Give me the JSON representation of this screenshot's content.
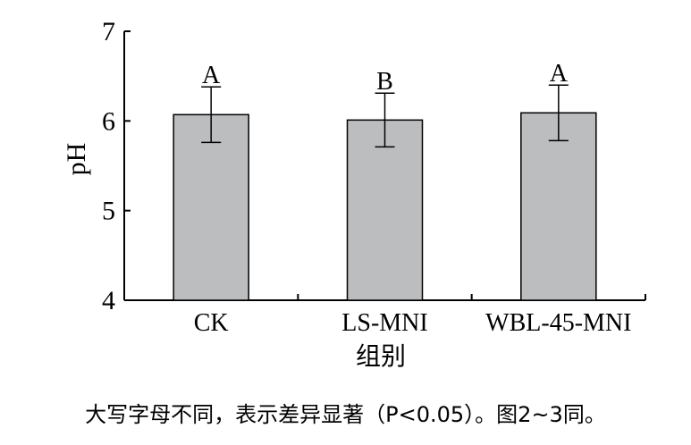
{
  "chart_data": {
    "type": "bar",
    "categories": [
      "CK",
      "LS-MNI",
      "WBL-45-MNI"
    ],
    "values": [
      6.07,
      6.01,
      6.09
    ],
    "error": [
      0.31,
      0.3,
      0.31
    ],
    "significance_letters": [
      "A",
      "B",
      "A"
    ],
    "xlabel": "组别",
    "ylabel": "pH",
    "ylim": [
      4,
      7
    ],
    "yticks": [
      "4",
      "5",
      "6",
      "7"
    ],
    "grid": false,
    "colors": {
      "bar": "#bcbdbf",
      "bar_edge": "#000000",
      "axis": "#000000"
    }
  },
  "caption": "大写字母不同，表示差异显著（P<0.05）。图2~3同。"
}
